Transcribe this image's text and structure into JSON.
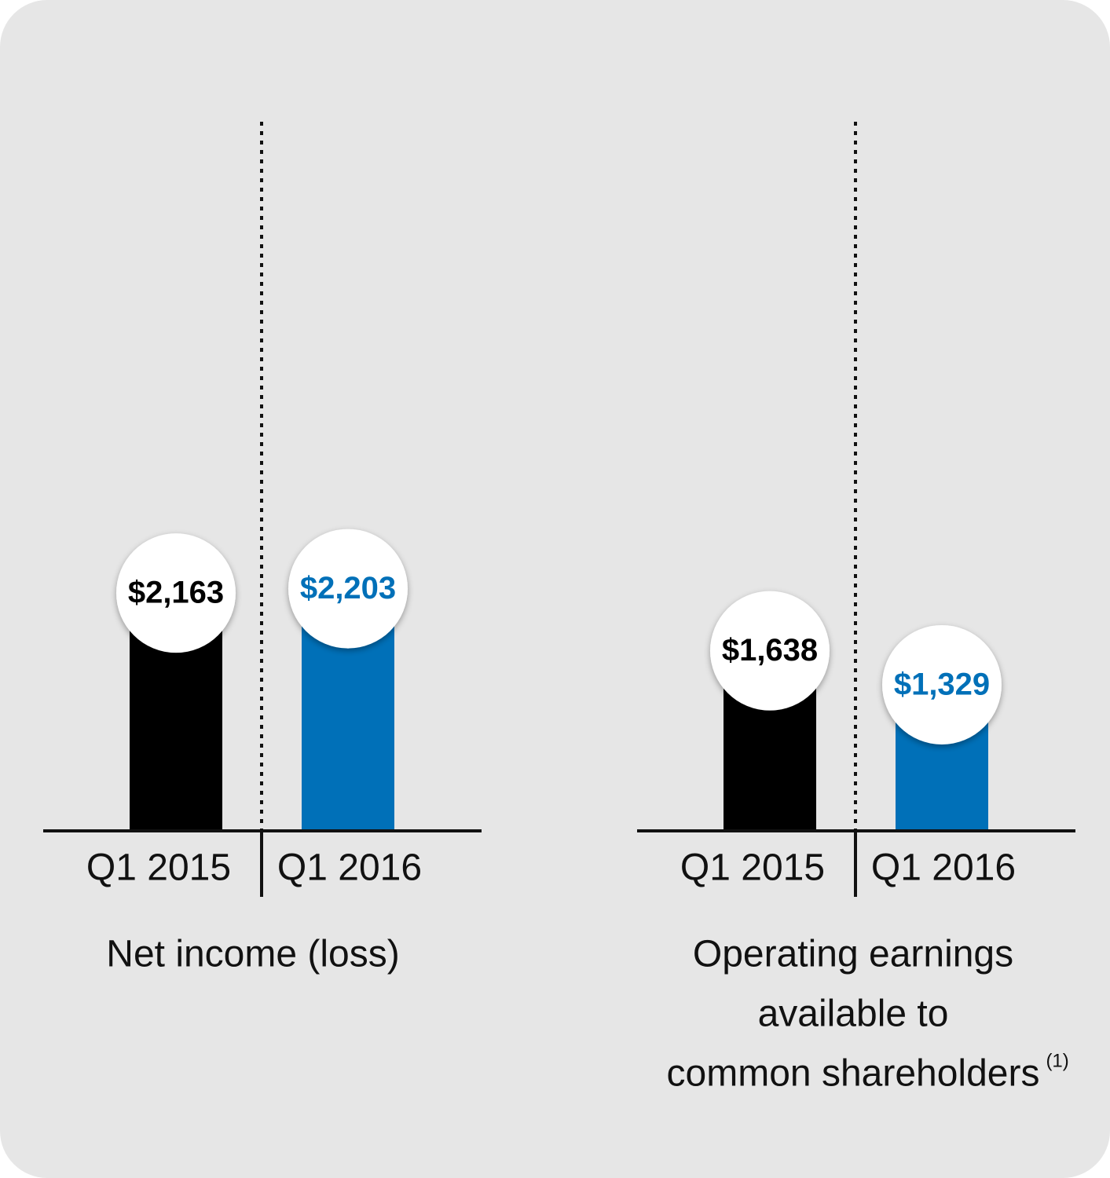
{
  "chart_data": [
    {
      "type": "bar",
      "title": "Net income (loss)",
      "categories": [
        "Q1 2015",
        "Q1 2016"
      ],
      "values": [
        2163,
        2203
      ],
      "value_labels": [
        "$2,163",
        "$2,203"
      ],
      "colors": [
        "#000000",
        "#0070b8"
      ]
    },
    {
      "type": "bar",
      "title": [
        "Operating earnings",
        "available to",
        "common shareholders"
      ],
      "footnote_mark": "(1)",
      "categories": [
        "Q1 2015",
        "Q1 2016"
      ],
      "values": [
        1638,
        1329
      ],
      "value_labels": [
        "$1,638",
        "$1,329"
      ],
      "colors": [
        "#000000",
        "#0070b8"
      ]
    }
  ]
}
